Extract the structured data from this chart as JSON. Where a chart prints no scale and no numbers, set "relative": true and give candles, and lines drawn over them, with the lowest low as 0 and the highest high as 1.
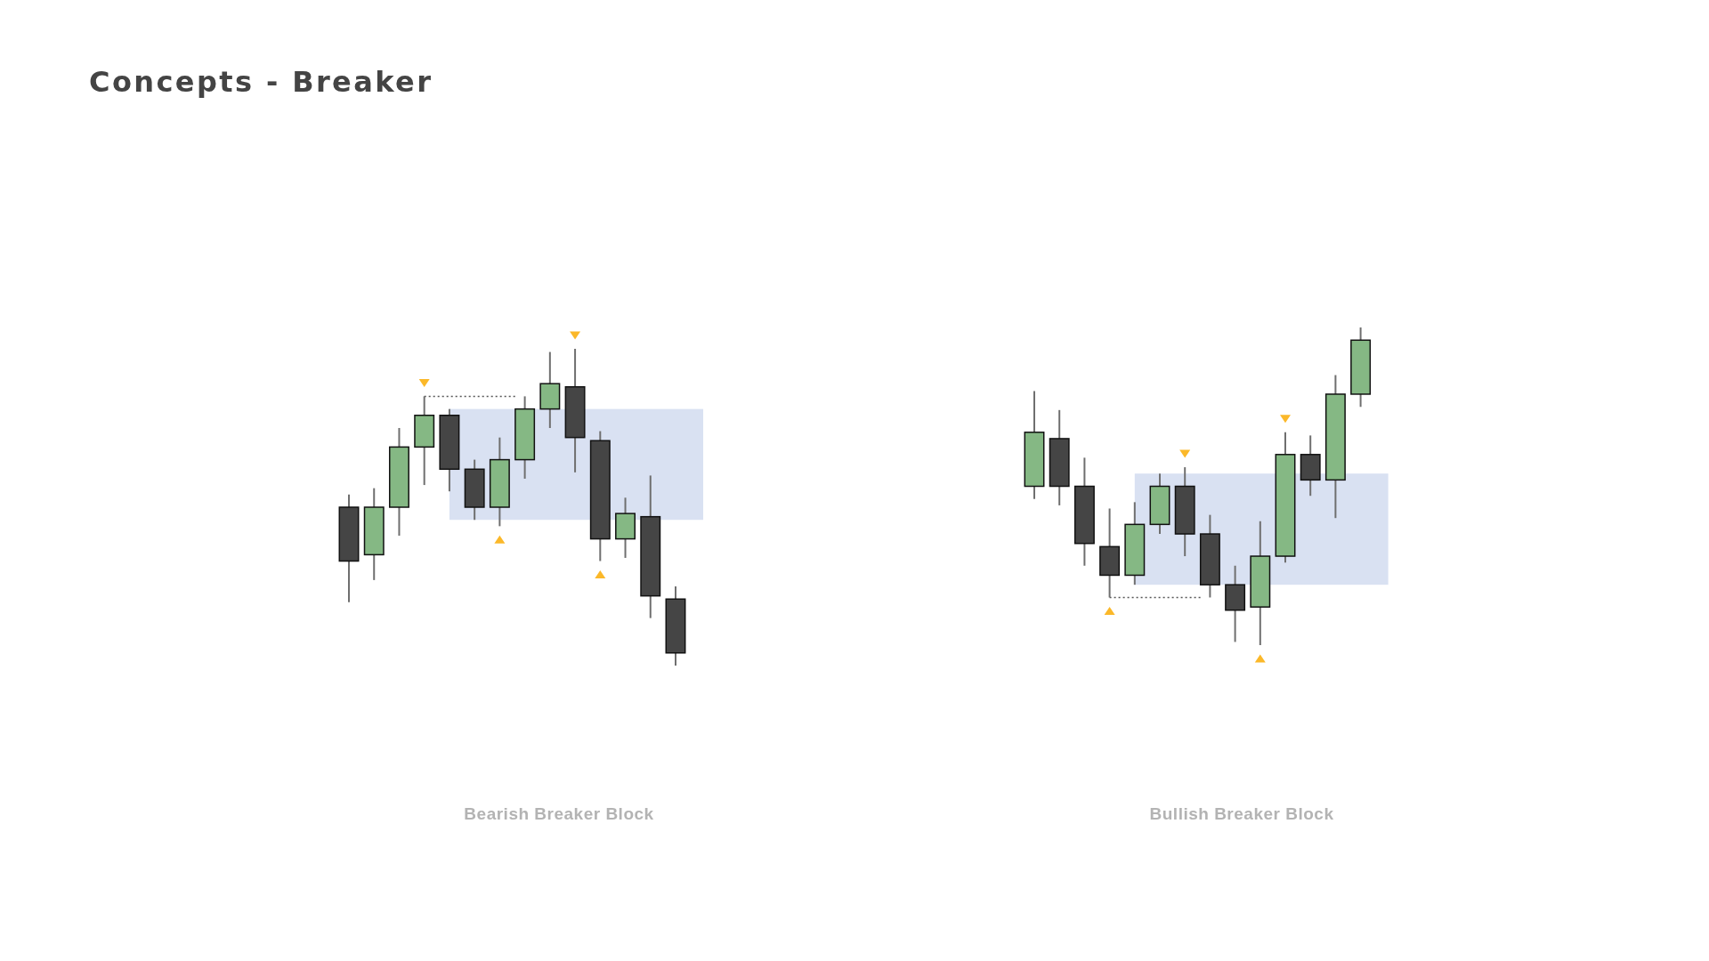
{
  "chart_data": [
    {
      "type": "candlestick",
      "title": "Concepts - Breaker",
      "xlabel": "Bearish Breaker Block",
      "relative": true,
      "categories": [
        null,
        null,
        null,
        null,
        null,
        null,
        null,
        null,
        null,
        null,
        null,
        null,
        null,
        null
      ],
      "ohlc": [
        [
          0.5,
          0.54,
          0.2,
          0.33
        ],
        [
          0.35,
          0.56,
          0.27,
          0.5
        ],
        [
          0.5,
          0.75,
          0.41,
          0.69
        ],
        [
          0.69,
          0.85,
          0.57,
          0.79
        ],
        [
          0.79,
          0.81,
          0.55,
          0.62
        ],
        [
          0.62,
          0.65,
          0.46,
          0.5
        ],
        [
          0.5,
          0.72,
          0.44,
          0.65
        ],
        [
          0.65,
          0.85,
          0.59,
          0.81
        ],
        [
          0.81,
          0.99,
          0.75,
          0.89
        ],
        [
          0.88,
          1.0,
          0.61,
          0.72
        ],
        [
          0.71,
          0.74,
          0.33,
          0.4
        ],
        [
          0.4,
          0.53,
          0.34,
          0.48
        ],
        [
          0.47,
          0.6,
          0.15,
          0.22
        ],
        [
          0.21,
          0.25,
          0.0,
          0.04
        ]
      ],
      "colors": [
        "#454545",
        "#85b884",
        "#85b884",
        "#85b884",
        "#454545",
        "#454545",
        "#85b884",
        "#85b884",
        "#85b884",
        "#454545",
        "#454545",
        "#85b884",
        "#454545",
        "#454545"
      ],
      "bands": [
        {
          "axis": "y",
          "from": 0.46,
          "to": 0.81,
          "color": "#d9e1f2"
        }
      ],
      "ref_lines": [
        {
          "axis": "y",
          "value": 0.85,
          "line_style": "dotted",
          "color": "#555555"
        }
      ]
    },
    {
      "type": "candlestick",
      "xlabel": "Bullish Breaker Block",
      "relative": true,
      "categories": [
        null,
        null,
        null,
        null,
        null,
        null,
        null,
        null,
        null,
        null,
        null,
        null,
        null,
        null
      ],
      "ohlc": [
        [
          0.5,
          0.8,
          0.46,
          0.67
        ],
        [
          0.65,
          0.74,
          0.44,
          0.5
        ],
        [
          0.5,
          0.59,
          0.25,
          0.32
        ],
        [
          0.31,
          0.43,
          0.15,
          0.22
        ],
        [
          0.22,
          0.45,
          0.19,
          0.38
        ],
        [
          0.38,
          0.54,
          0.35,
          0.5
        ],
        [
          0.5,
          0.56,
          0.28,
          0.35
        ],
        [
          0.35,
          0.41,
          0.15,
          0.19
        ],
        [
          0.19,
          0.25,
          0.01,
          0.11
        ],
        [
          0.12,
          0.39,
          0.0,
          0.28
        ],
        [
          0.28,
          0.67,
          0.26,
          0.6
        ],
        [
          0.6,
          0.66,
          0.47,
          0.52
        ],
        [
          0.52,
          0.85,
          0.4,
          0.79
        ],
        [
          0.79,
          1.0,
          0.75,
          0.96
        ]
      ],
      "colors": [
        "#85b884",
        "#454545",
        "#454545",
        "#454545",
        "#85b884",
        "#85b884",
        "#454545",
        "#454545",
        "#454545",
        "#85b884",
        "#85b884",
        "#454545",
        "#85b884",
        "#85b884"
      ],
      "bands": [
        {
          "axis": "y",
          "from": 0.19,
          "to": 0.54,
          "color": "#d9e1f2"
        }
      ],
      "ref_lines": [
        {
          "axis": "y",
          "value": 0.15,
          "line_style": "dotted",
          "color": "#555555"
        }
      ]
    }
  ]
}
